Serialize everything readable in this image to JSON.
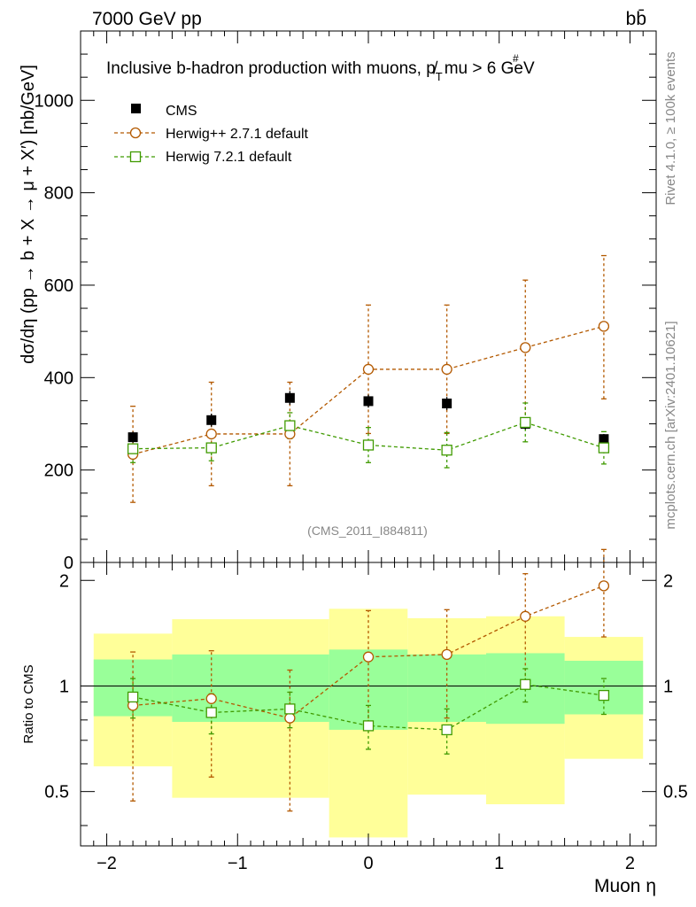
{
  "header": {
    "left": "7000 GeV pp",
    "right": "bb̄"
  },
  "side_labels": {
    "rivet": "Rivet 4.1.0, ≥ 100k events",
    "mcplots": "mcplots.cern.ch [arXiv:2401.10621]"
  },
  "chart_data": [
    {
      "type": "scatter",
      "title": "Inclusive b-hadron production with muons, p̸",
      "title_sub": "T",
      "title_tail": "mu > 6 GeV",
      "title_hash": "#",
      "ylabel": "dσ/dη (pp → b + X → μ + X′) [nb/GeV]",
      "ylim": [
        0,
        1150
      ],
      "y_ticks": [
        0,
        200,
        400,
        600,
        800,
        1000
      ],
      "y_tick_labels": [
        "0",
        "200",
        "400",
        "600",
        "800",
        "1000"
      ],
      "xlim": [
        -2.2,
        2.2
      ],
      "watermark": "(CMS_2011_I884811)",
      "legend": [
        {
          "name": "CMS",
          "color": "#000000",
          "marker": "square-filled"
        },
        {
          "name": "Herwig++ 2.7.1 default",
          "color": "#b35900",
          "marker": "circle-open"
        },
        {
          "name": "Herwig 7.2.1 default",
          "color": "#3f9a00",
          "marker": "square-open"
        }
      ],
      "series": [
        {
          "name": "CMS",
          "x": [
            -1.8,
            -1.2,
            -0.6,
            0.0,
            0.6,
            1.2,
            1.8
          ],
          "y": [
            271,
            308,
            356,
            349,
            344,
            300,
            267
          ],
          "err": [
            12,
            14,
            15,
            14,
            14,
            12,
            11
          ]
        },
        {
          "name": "Herwig++ 2.7.1 default",
          "x": [
            -1.8,
            -1.2,
            -0.6,
            0.0,
            0.6,
            1.2,
            1.8
          ],
          "y": [
            234,
            278,
            278,
            418,
            418,
            465,
            511
          ],
          "err_lo": [
            104,
            112,
            112,
            139,
            139,
            157,
            157
          ],
          "err_hi": [
            104,
            112,
            112,
            139,
            139,
            146,
            153
          ]
        },
        {
          "name": "Herwig 7.2.1 default",
          "x": [
            -1.8,
            -1.2,
            -0.6,
            0.0,
            0.6,
            1.2,
            1.8
          ],
          "y": [
            246,
            248,
            296,
            254,
            243,
            303,
            248
          ],
          "err": [
            30,
            28,
            28,
            38,
            38,
            42,
            35
          ]
        }
      ]
    },
    {
      "type": "scatter",
      "ylabel": "Ratio to CMS",
      "xlabel": "Muon η",
      "ylim": [
        0.35,
        2.25
      ],
      "xlim": [
        -2.2,
        2.2
      ],
      "y_ticks": [
        0.5,
        1,
        2
      ],
      "y_tick_labels": [
        "0.5",
        "1",
        "2"
      ],
      "x_ticks": [
        -2,
        -1,
        0,
        1,
        2
      ],
      "x_tick_labels": [
        "−2",
        "−1",
        "0",
        "1",
        "2"
      ],
      "bands": [
        {
          "x0": -2.1,
          "x1": -1.5,
          "inner": [
            0.82,
            1.19
          ],
          "outer": [
            0.59,
            1.41
          ]
        },
        {
          "x0": -1.5,
          "x1": -0.3,
          "inner": [
            0.79,
            1.23
          ],
          "outer": [
            0.48,
            1.55
          ]
        },
        {
          "x0": -0.3,
          "x1": 0.3,
          "inner": [
            0.75,
            1.27
          ],
          "outer": [
            0.37,
            1.66
          ]
        },
        {
          "x0": 0.3,
          "x1": 0.9,
          "inner": [
            0.79,
            1.23
          ],
          "outer": [
            0.49,
            1.56
          ]
        },
        {
          "x0": 0.9,
          "x1": 1.5,
          "inner": [
            0.78,
            1.24
          ],
          "outer": [
            0.46,
            1.58
          ]
        },
        {
          "x0": 1.5,
          "x1": 2.1,
          "inner": [
            0.83,
            1.18
          ],
          "outer": [
            0.62,
            1.38
          ]
        }
      ],
      "series": [
        {
          "name": "Herwig++ 2.7.1 default",
          "x": [
            -1.8,
            -1.2,
            -0.6,
            0.0,
            0.6,
            1.2,
            1.8
          ],
          "y": [
            0.88,
            0.92,
            0.81,
            1.21,
            1.23,
            1.58,
            1.93
          ],
          "err_lo": [
            0.41,
            0.37,
            0.37,
            0.43,
            0.42,
            0.55,
            0.55
          ],
          "err_hi": [
            0.37,
            0.34,
            0.3,
            0.43,
            0.42,
            0.51,
            0.52
          ]
        },
        {
          "name": "Herwig 7.2.1 default",
          "x": [
            -1.8,
            -1.2,
            -0.6,
            0.0,
            0.6,
            1.2,
            1.8
          ],
          "y": [
            0.93,
            0.84,
            0.86,
            0.77,
            0.75,
            1.01,
            0.94
          ],
          "err": [
            0.12,
            0.11,
            0.1,
            0.11,
            0.11,
            0.11,
            0.11
          ]
        }
      ]
    }
  ]
}
